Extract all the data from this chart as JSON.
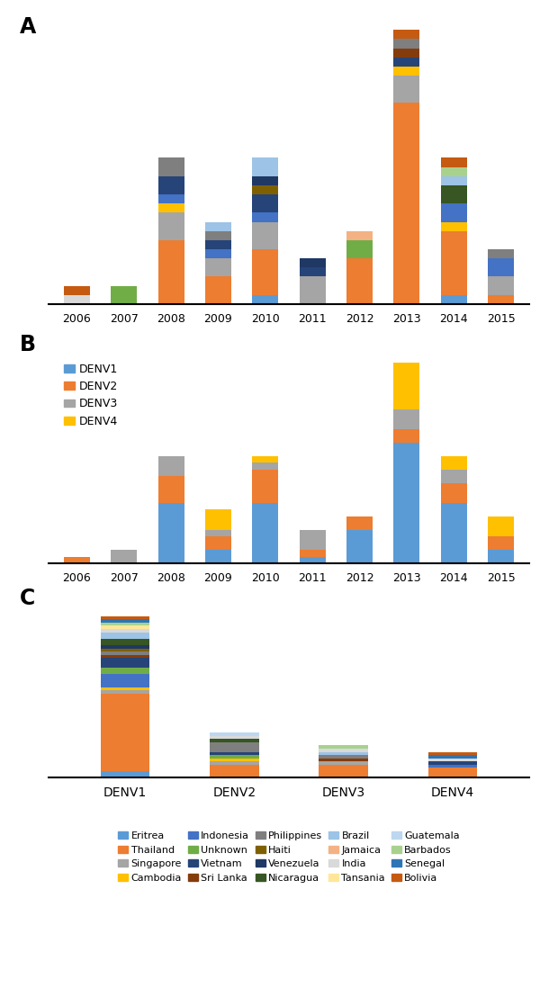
{
  "countries": [
    "Eritrea",
    "Thailand",
    "Singapore",
    "Cambodia",
    "Indonesia",
    "Unknown",
    "Vietnam",
    "Sri Lanka",
    "Philippines",
    "Haiti",
    "Venezuela",
    "Nicaragua",
    "Brazil",
    "Jamaica",
    "India",
    "Tansania",
    "Guatemala",
    "Barbados",
    "Senegal",
    "Bolivia"
  ],
  "country_colors": {
    "Eritrea": "#5b9bd5",
    "Thailand": "#ed7d31",
    "Singapore": "#a5a5a5",
    "Cambodia": "#ffc000",
    "Indonesia": "#4472c4",
    "Unknown": "#70ad47",
    "Vietnam": "#264478",
    "Sri Lanka": "#843c0c",
    "Philippines": "#7f7f7f",
    "Haiti": "#7f6000",
    "Venezuela": "#1f3864",
    "Nicaragua": "#375623",
    "Brazil": "#9dc3e6",
    "Jamaica": "#f4b183",
    "India": "#d9d9d9",
    "Tansania": "#ffe699",
    "Guatemala": "#bdd7ee",
    "Barbados": "#a9d18e",
    "Senegal": "#2e75b6",
    "Bolivia": "#c55a11"
  },
  "years": [
    "2006",
    "2007",
    "2008",
    "2009",
    "2010",
    "2011",
    "2012",
    "2013",
    "2014",
    "2015"
  ],
  "chartA": {
    "2006": {
      "Bolivia": 1,
      "India": 1
    },
    "2007": {
      "Unknown": 2
    },
    "2008": {
      "Thailand": 7,
      "Cambodia": 1,
      "Vietnam": 2,
      "Philippines": 2,
      "Singapore": 3,
      "Indonesia": 1
    },
    "2009": {
      "Thailand": 3,
      "Singapore": 2,
      "Philippines": 1,
      "Indonesia": 1,
      "Vietnam": 1,
      "Brazil": 1
    },
    "2010": {
      "Thailand": 5,
      "Haiti": 1,
      "Vietnam": 2,
      "Singapore": 3,
      "Eritrea": 1,
      "Brazil": 2,
      "Indonesia": 1,
      "Venezuela": 1
    },
    "2011": {
      "Vietnam": 1,
      "Venezuela": 1,
      "Singapore": 3
    },
    "2012": {
      "Thailand": 5,
      "Unknown": 2,
      "Jamaica": 1
    },
    "2013": {
      "Thailand": 22,
      "Cambodia": 1,
      "Singapore": 3,
      "Philippines": 1,
      "Sri Lanka": 1,
      "Vietnam": 1,
      "Bolivia": 1
    },
    "2014": {
      "Thailand": 7,
      "Cambodia": 1,
      "Nicaragua": 2,
      "Barbados": 1,
      "Indonesia": 2,
      "Brazil": 1,
      "Eritrea": 1,
      "Bolivia": 1
    },
    "2015": {
      "Thailand": 1,
      "Singapore": 2,
      "Indonesia": 2,
      "Philippines": 1
    }
  },
  "chartB": {
    "2006": {
      "DENV2": 1
    },
    "2007": {
      "DENV3": 2
    },
    "2008": {
      "DENV1": 9,
      "DENV2": 4,
      "DENV3": 3
    },
    "2009": {
      "DENV1": 2,
      "DENV2": 2,
      "DENV3": 1,
      "DENV4": 3
    },
    "2010": {
      "DENV1": 9,
      "DENV2": 5,
      "DENV3": 1,
      "DENV4": 1
    },
    "2011": {
      "DENV1": 1,
      "DENV2": 1,
      "DENV3": 3
    },
    "2012": {
      "DENV1": 5,
      "DENV2": 2
    },
    "2013": {
      "DENV1": 18,
      "DENV2": 2,
      "DENV3": 3,
      "DENV4": 7
    },
    "2014": {
      "DENV1": 9,
      "DENV2": 3,
      "DENV3": 2,
      "DENV4": 2
    },
    "2015": {
      "DENV1": 2,
      "DENV2": 2,
      "DENV4": 3
    }
  },
  "chartC": {
    "DENV1": {
      "Eritrea": 2,
      "Thailand": 24,
      "Singapore": 1,
      "Cambodia": 1,
      "Indonesia": 4,
      "Unknown": 2,
      "Vietnam": 3,
      "Sri Lanka": 1,
      "Philippines": 1,
      "Haiti": 1,
      "Venezuela": 1,
      "Nicaragua": 2,
      "Brazil": 2,
      "Jamaica": 0,
      "India": 1,
      "Tansania": 1,
      "Guatemala": 0,
      "Barbados": 1,
      "Senegal": 1,
      "Bolivia": 1
    },
    "DENV2": {
      "Eritrea": 0,
      "Thailand": 4,
      "Singapore": 1,
      "Cambodia": 1,
      "Indonesia": 0,
      "Unknown": 1,
      "Vietnam": 1,
      "Sri Lanka": 0,
      "Philippines": 3,
      "Haiti": 0,
      "Venezuela": 0,
      "Nicaragua": 1,
      "Brazil": 0,
      "Jamaica": 0,
      "India": 1,
      "Tansania": 0,
      "Guatemala": 1,
      "Barbados": 0,
      "Senegal": 0,
      "Bolivia": 0
    },
    "DENV3": {
      "Eritrea": 0,
      "Thailand": 4,
      "Singapore": 1,
      "Cambodia": 0,
      "Indonesia": 0,
      "Unknown": 0,
      "Vietnam": 0,
      "Sri Lanka": 1,
      "Philippines": 1,
      "Haiti": 0,
      "Venezuela": 0,
      "Nicaragua": 0,
      "Brazil": 1,
      "Jamaica": 0,
      "India": 1,
      "Tansania": 0,
      "Guatemala": 0,
      "Barbados": 1,
      "Senegal": 0,
      "Bolivia": 0
    },
    "DENV4": {
      "Eritrea": 0,
      "Thailand": 3,
      "Singapore": 0,
      "Cambodia": 0,
      "Indonesia": 1,
      "Unknown": 0,
      "Vietnam": 1,
      "Sri Lanka": 0,
      "Philippines": 0,
      "Haiti": 0,
      "Venezuela": 0,
      "Nicaragua": 0,
      "Brazil": 0,
      "Jamaica": 0,
      "India": 1,
      "Tansania": 0,
      "Guatemala": 0,
      "Barbados": 0,
      "Senegal": 1,
      "Bolivia": 1
    }
  },
  "denv_colors": {
    "DENV1": "#5b9bd5",
    "DENV2": "#ed7d31",
    "DENV3": "#a5a5a5",
    "DENV4": "#ffc000"
  },
  "legend_order_A": [
    [
      "Eritrea",
      "Thailand",
      "Singapore",
      "Cambodia",
      "Indonesia"
    ],
    [
      "Unknown",
      "Vietnam",
      "Sri Lanka",
      "Philippines",
      "Haiti"
    ],
    [
      "Venezuela",
      "Nicaragua",
      "Brazil",
      "Jamaica",
      "India"
    ],
    [
      "Tansania",
      "Guatemala",
      "Barbados",
      "Senegal",
      "Bolivia"
    ]
  ]
}
